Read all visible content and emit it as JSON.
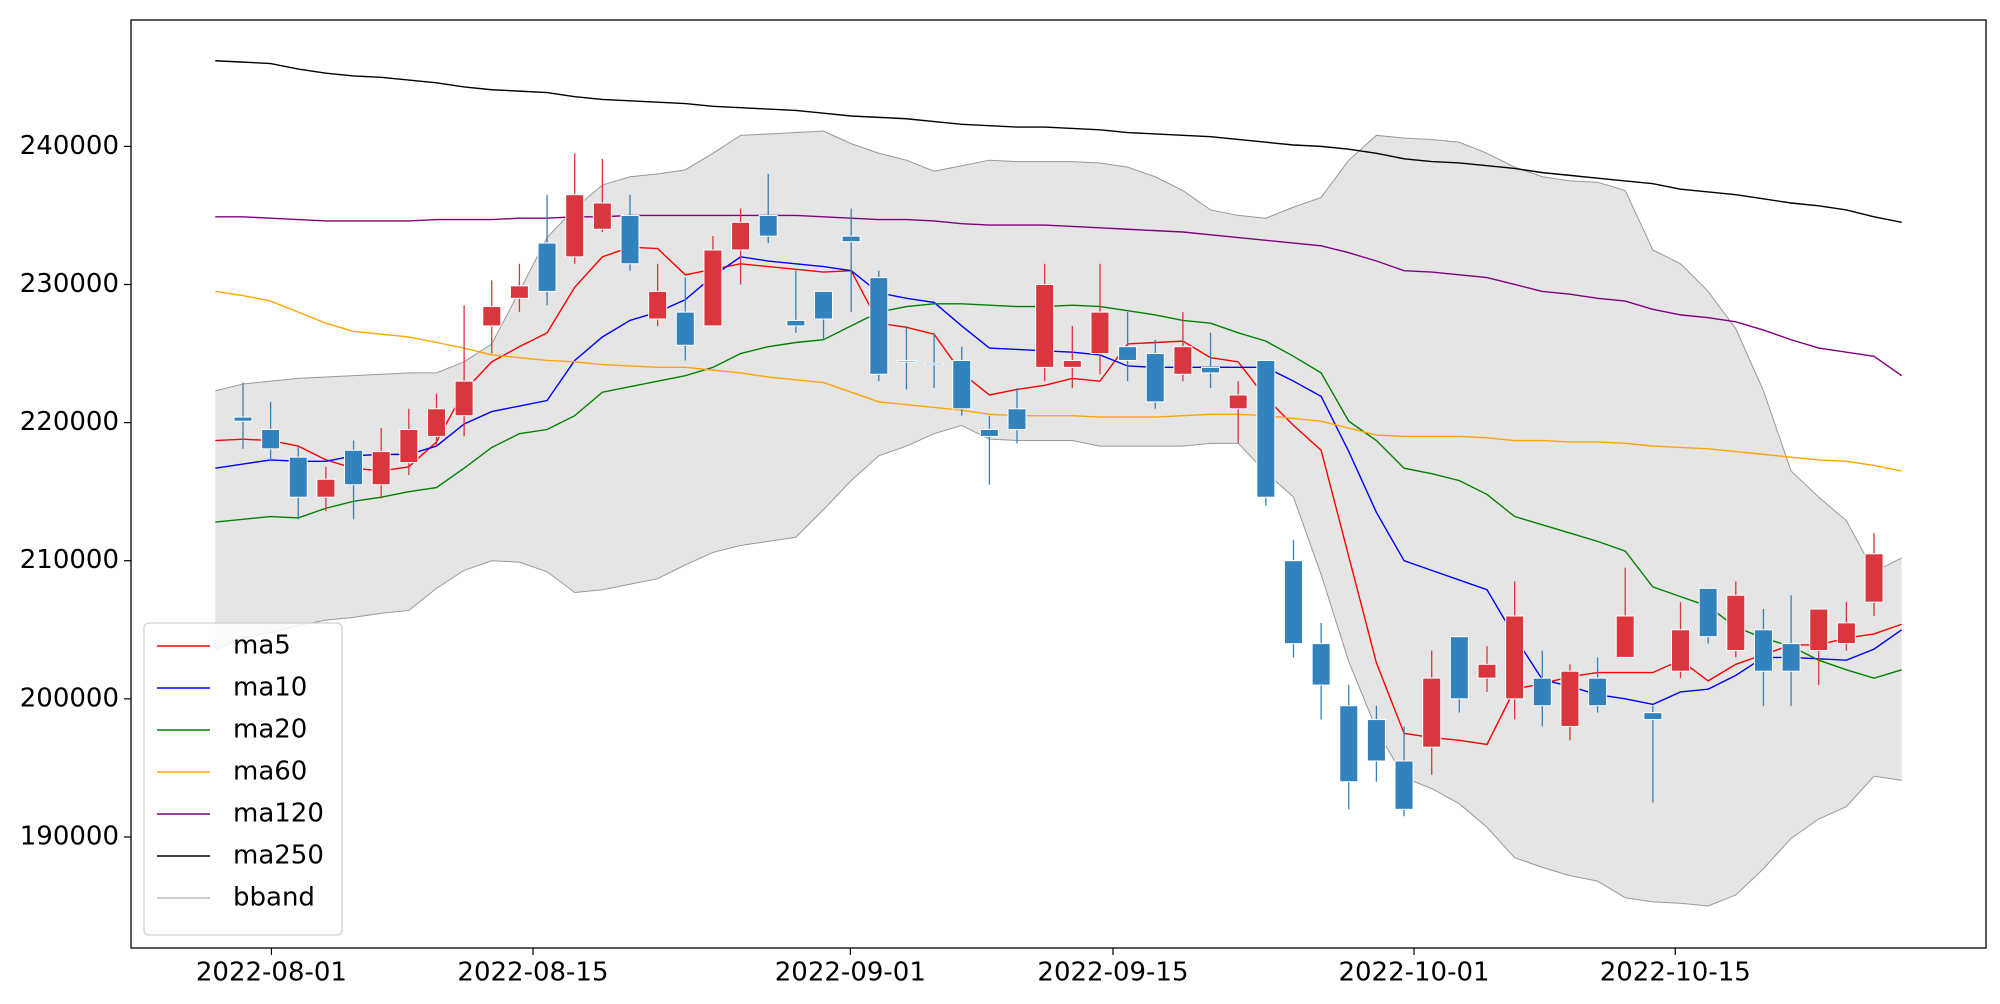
{
  "chart_data": {
    "type": "candlestick",
    "xlim": [
      -3.05,
      64.05
    ],
    "ylim": [
      181960,
      249150
    ],
    "yticks": [
      190000,
      200000,
      210000,
      220000,
      230000,
      240000
    ],
    "xticks": [
      {
        "value": 2.03,
        "label": "2022-08-01"
      },
      {
        "value": 11.49,
        "label": "2022-08-15"
      },
      {
        "value": 22.97,
        "label": "2022-09-01"
      },
      {
        "value": 32.47,
        "label": "2022-09-15"
      },
      {
        "value": 43.36,
        "label": "2022-10-01"
      },
      {
        "value": 52.81,
        "label": "2022-10-15"
      }
    ],
    "legend": "lower left",
    "candles": {
      "up_color": "#d9363e",
      "down_color": "#3182bd",
      "x": [
        1,
        2,
        3,
        4,
        5,
        6,
        7,
        8,
        9,
        10,
        11,
        12,
        13,
        14,
        15,
        16,
        17,
        18,
        19,
        20,
        21,
        22,
        23,
        24,
        25,
        26,
        27,
        28,
        29,
        30,
        31,
        32,
        33,
        34,
        35,
        36,
        37,
        38,
        39,
        40,
        41,
        42,
        43,
        44,
        45,
        46,
        47,
        48,
        49,
        50,
        51,
        52,
        53,
        54,
        55,
        56,
        57,
        58,
        59,
        60
      ],
      "open": [
        220400,
        219500,
        217500,
        214600,
        218000,
        215500,
        217100,
        219000,
        220500,
        227000,
        229000,
        233000,
        232000,
        234000,
        235000,
        227500,
        228000,
        227000,
        232500,
        235000,
        227400,
        229500,
        233500,
        230500,
        224500,
        224300,
        224500,
        219500,
        221000,
        224000,
        224000,
        225000,
        225500,
        225000,
        223500,
        224000,
        221000,
        224500,
        210000,
        204000,
        199500,
        198500,
        195500,
        196500,
        204500,
        201500,
        200000,
        201500,
        198000,
        201500,
        203000,
        199000,
        202000,
        208000,
        203500,
        205000,
        204000,
        203500,
        204000,
        207000
      ],
      "high": [
        222900,
        221500,
        218300,
        216800,
        218700,
        219600,
        221000,
        222100,
        228500,
        230300,
        231500,
        236500,
        239500,
        239100,
        236500,
        231500,
        230500,
        233500,
        235500,
        238000,
        231000,
        229500,
        235500,
        231000,
        227000,
        226500,
        225500,
        220500,
        222500,
        231500,
        227000,
        231500,
        228000,
        226000,
        228000,
        226500,
        223000,
        224500,
        211500,
        205500,
        201000,
        199500,
        198000,
        203500,
        204500,
        203800,
        208500,
        203500,
        202500,
        203000,
        209500,
        199500,
        207000,
        208000,
        208500,
        206500,
        207500,
        206500,
        207000,
        212000
      ],
      "low": [
        218100,
        217200,
        213000,
        213600,
        213000,
        214500,
        216200,
        218300,
        219000,
        225000,
        228000,
        228500,
        231500,
        233800,
        231000,
        227000,
        224500,
        227000,
        230000,
        233000,
        226500,
        226000,
        228000,
        223000,
        222400,
        222500,
        220500,
        215500,
        218500,
        223000,
        222500,
        223500,
        223000,
        221000,
        223000,
        222500,
        218500,
        214000,
        203000,
        198500,
        192000,
        194000,
        191500,
        194500,
        199000,
        200500,
        198500,
        198000,
        197000,
        199000,
        203000,
        192500,
        201500,
        204000,
        203000,
        199500,
        199500,
        201000,
        203500,
        206000
      ],
      "close": [
        220100,
        218100,
        214600,
        215900,
        215500,
        217900,
        219500,
        221000,
        223000,
        228400,
        229900,
        229500,
        236500,
        235900,
        231500,
        229500,
        225600,
        232500,
        234500,
        233500,
        227000,
        227500,
        233100,
        223500,
        224400,
        224200,
        221000,
        219000,
        219500,
        230000,
        224500,
        228000,
        224500,
        221500,
        225500,
        223600,
        222000,
        214600,
        204000,
        201000,
        194000,
        195500,
        192000,
        201500,
        200000,
        202500,
        206000,
        199500,
        202000,
        199500,
        206000,
        198500,
        205000,
        204500,
        207500,
        202000,
        202000,
        206500,
        205500,
        210500
      ]
    },
    "x": [
      0,
      1,
      2,
      3,
      4,
      5,
      6,
      7,
      8,
      9,
      10,
      11,
      12,
      13,
      14,
      15,
      16,
      17,
      18,
      19,
      20,
      21,
      22,
      23,
      24,
      25,
      26,
      27,
      28,
      29,
      30,
      31,
      32,
      33,
      34,
      35,
      36,
      37,
      38,
      39,
      40,
      41,
      42,
      43,
      44,
      45,
      46,
      47,
      48,
      49,
      50,
      51,
      52,
      53,
      54,
      55,
      56,
      57,
      58,
      59,
      60,
      61
    ],
    "series": [
      {
        "name": "ma5",
        "color": "#ff0000",
        "values": [
          218700,
          218800,
          218700,
          218300,
          217300,
          216700,
          216500,
          216800,
          218600,
          222300,
          224400,
          225500,
          226500,
          229800,
          232000,
          232700,
          232600,
          230700,
          231100,
          231500,
          231300,
          231100,
          230900,
          231000,
          227200,
          226900,
          226400,
          223600,
          222000,
          222400,
          222700,
          223200,
          223000,
          225700,
          225800,
          225900,
          224700,
          224400,
          221800,
          219800,
          218000,
          210300,
          202600,
          197500,
          197200,
          197000,
          196700,
          200700,
          201100,
          201600,
          201900,
          201900,
          201900,
          202800,
          201300,
          202500,
          203200,
          203900,
          203900,
          204400,
          204700,
          205400
        ]
      },
      {
        "name": "ma10",
        "color": "#0000ff",
        "values": [
          216700,
          217000,
          217300,
          217200,
          217200,
          217600,
          217700,
          217700,
          218300,
          219900,
          220800,
          221200,
          221600,
          224500,
          226200,
          227400,
          228000,
          228900,
          230600,
          232000,
          231700,
          231500,
          231300,
          231000,
          229400,
          229000,
          228700,
          227000,
          225400,
          225300,
          225200,
          225100,
          224900,
          224100,
          224000,
          224000,
          224000,
          224000,
          224000,
          223000,
          221900,
          217900,
          213500,
          210000,
          209300,
          208600,
          207900,
          204500,
          201400,
          200900,
          200300,
          200000,
          199600,
          200500,
          200700,
          201700,
          203000,
          203000,
          202900,
          202800,
          203600,
          205000
        ]
      },
      {
        "name": "ma20",
        "color": "#008000",
        "values": [
          212800,
          213000,
          213200,
          213100,
          213800,
          214300,
          214600,
          215000,
          215300,
          216700,
          218200,
          219200,
          219500,
          220500,
          222200,
          222600,
          223000,
          223400,
          224000,
          225000,
          225500,
          225800,
          226000,
          227000,
          228000,
          228400,
          228600,
          228600,
          228500,
          228400,
          228400,
          228500,
          228400,
          228100,
          227800,
          227400,
          227200,
          226500,
          225900,
          224800,
          223600,
          220100,
          218700,
          216700,
          216300,
          215800,
          214800,
          213200,
          212600,
          212000,
          211400,
          210700,
          208100,
          207400,
          206700,
          205200,
          204400,
          203800,
          202800,
          202100,
          201500,
          202100
        ]
      },
      {
        "name": "ma60",
        "color": "#ffa500",
        "values": [
          229500,
          229200,
          228800,
          228000,
          227200,
          226600,
          226400,
          226200,
          225800,
          225400,
          224900,
          224700,
          224500,
          224400,
          224200,
          224100,
          224000,
          224000,
          223800,
          223600,
          223300,
          223100,
          222900,
          222200,
          221500,
          221300,
          221100,
          220900,
          220600,
          220500,
          220500,
          220500,
          220400,
          220400,
          220400,
          220500,
          220600,
          220600,
          220500,
          220300,
          220100,
          219600,
          219100,
          219000,
          219000,
          219000,
          218900,
          218700,
          218700,
          218600,
          218600,
          218500,
          218300,
          218200,
          218100,
          217900,
          217700,
          217500,
          217300,
          217200,
          216900,
          216500
        ]
      },
      {
        "name": "ma120",
        "color": "#800080",
        "values": [
          234900,
          234900,
          234800,
          234700,
          234600,
          234600,
          234600,
          234600,
          234700,
          234700,
          234700,
          234800,
          234800,
          234900,
          234900,
          235000,
          235000,
          235000,
          235000,
          235000,
          235000,
          235000,
          234900,
          234800,
          234700,
          234700,
          234600,
          234400,
          234300,
          234300,
          234300,
          234200,
          234100,
          234000,
          233900,
          233800,
          233600,
          233400,
          233200,
          233000,
          232800,
          232300,
          231700,
          231000,
          230900,
          230700,
          230500,
          230000,
          229500,
          229300,
          229000,
          228800,
          228200,
          227800,
          227600,
          227300,
          226700,
          226000,
          225400,
          225100,
          224800,
          223400
        ]
      },
      {
        "name": "ma250",
        "color": "#000000",
        "values": [
          246200,
          246100,
          246000,
          245600,
          245300,
          245100,
          245000,
          244800,
          244600,
          244300,
          244100,
          244000,
          243900,
          243600,
          243400,
          243300,
          243200,
          243100,
          242900,
          242800,
          242700,
          242600,
          242400,
          242200,
          242100,
          242000,
          241800,
          241600,
          241500,
          241400,
          241400,
          241300,
          241200,
          241000,
          240900,
          240800,
          240700,
          240500,
          240300,
          240100,
          240000,
          239800,
          239500,
          239100,
          238900,
          238800,
          238600,
          238400,
          238100,
          237900,
          237700,
          237500,
          237300,
          236900,
          236700,
          236500,
          236200,
          235900,
          235700,
          235400,
          234900,
          234500
        ]
      }
    ],
    "bband": {
      "name": "bband",
      "color": "#999999",
      "fill": "#e5e5e5",
      "upper": [
        222300,
        222800,
        223000,
        223200,
        223300,
        223400,
        223500,
        223600,
        223600,
        224400,
        225700,
        229500,
        233400,
        235500,
        237200,
        237800,
        238000,
        238300,
        239500,
        240800,
        240900,
        241000,
        241100,
        240200,
        239500,
        239000,
        238200,
        238600,
        239000,
        238900,
        238900,
        238900,
        238800,
        238500,
        237800,
        236800,
        235400,
        235000,
        234800,
        235600,
        236300,
        239000,
        240800,
        240600,
        240500,
        240300,
        239500,
        238500,
        237800,
        237500,
        237400,
        236800,
        232500,
        231500,
        229500,
        226800,
        222300,
        216500,
        214600,
        212900,
        209200,
        210200
      ],
      "lower": [
        203500,
        204400,
        204800,
        205300,
        205700,
        205900,
        206200,
        206400,
        208000,
        209300,
        210000,
        209900,
        209200,
        207700,
        207900,
        208300,
        208700,
        209700,
        210600,
        211100,
        211400,
        211700,
        213700,
        215800,
        217600,
        218300,
        219200,
        219800,
        218800,
        218700,
        218700,
        218700,
        218300,
        218300,
        218300,
        218300,
        218500,
        218500,
        216400,
        214600,
        209000,
        202700,
        197800,
        194300,
        193500,
        192400,
        190700,
        188500,
        187800,
        187200,
        186800,
        185600,
        185300,
        185200,
        185000,
        185800,
        187700,
        189900,
        191300,
        192200,
        194400,
        194100
      ]
    }
  }
}
